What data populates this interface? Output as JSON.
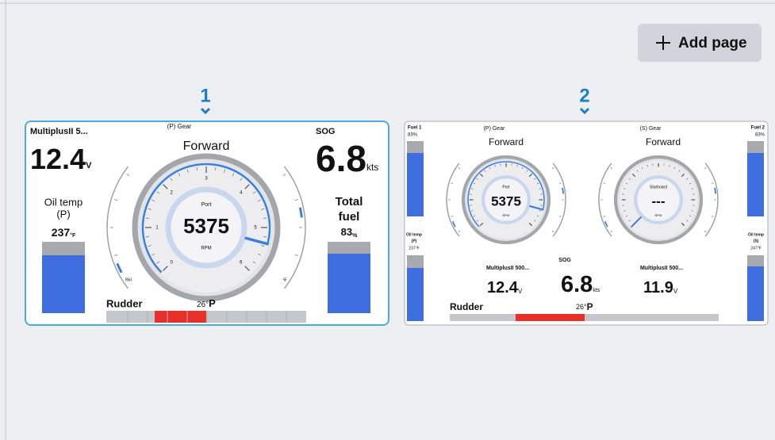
{
  "toolbar": {
    "add_page": "Add page"
  },
  "pages": [
    {
      "number": "1",
      "battery": {
        "label": "MultiplusII 5...",
        "value": "12.4",
        "unit": "V"
      },
      "gear": {
        "label": "(P) Gear",
        "value": "Forward"
      },
      "sog": {
        "label": "SOG",
        "value": "6.8",
        "unit": "kts"
      },
      "oil_temp": {
        "label": [
          "Oil temp",
          "(P)"
        ],
        "value": "237",
        "unit": "°F"
      },
      "fuel": {
        "label": [
          "Total",
          "fuel"
        ],
        "value": "83",
        "unit": "%"
      },
      "rpm_gauge": {
        "name": "Port",
        "value": "5375",
        "unit": "RPM",
        "scale": [
          "0",
          "1",
          "2",
          "3",
          "4",
          "5",
          "6"
        ],
        "left_unit": "PSI",
        "right_unit": "°F"
      },
      "rudder": {
        "label": "Rudder",
        "value": "26°",
        "side": "P"
      }
    },
    {
      "number": "2",
      "fuel_1": {
        "label": "Fuel 1",
        "value": "83%"
      },
      "fuel_2": {
        "label": "Fuel 2",
        "value": "83%"
      },
      "gear_p": {
        "label": "(P) Gear",
        "value": "Forward"
      },
      "gear_s": {
        "label": "(S) Gear",
        "value": "Forward"
      },
      "port_gauge": {
        "name": "Port",
        "value": "5375",
        "unit": "RPM"
      },
      "starboard_gauge": {
        "name": "Starboard",
        "value": "---",
        "unit": "RPM"
      },
      "oil_temp_p": {
        "label": [
          "Oil temp",
          "(P)"
        ],
        "value": "237°F"
      },
      "oil_temp_s": {
        "label": [
          "Oil temp",
          "(S)"
        ],
        "value": "247°F"
      },
      "battery_1": {
        "label": "MultiplusII 500...",
        "value": "12.4",
        "unit": "V"
      },
      "sog": {
        "label": "SOG",
        "value": "6.8",
        "unit": "kts"
      },
      "battery_2": {
        "label": "MultiplusII 500...",
        "value": "11.9",
        "unit": "V"
      },
      "rudder": {
        "label": "Rudder",
        "value": "26°",
        "side": "P"
      }
    }
  ]
}
